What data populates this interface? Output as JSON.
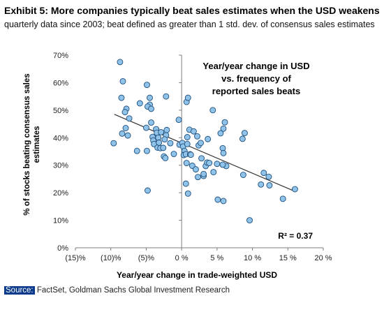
{
  "header": {
    "title": "Exhibit 5: More companies typically beat sales estimates when the USD weakens",
    "subtitle": "quarterly data since 2003; beat defined as greater than 1 std. dev. of consensus sales estimates"
  },
  "footer": {
    "source_label": "Source:",
    "source_text": "FactSet, Goldman Sachs Global Investment Research"
  },
  "colors": {
    "marker_fill": "#8fc3ea",
    "marker_stroke": "#1f4e79",
    "trendline": "#333333",
    "axis": "#7f7f7f",
    "source_bg": "#0b3a8c"
  },
  "chart_data": {
    "type": "scatter",
    "title": "Year/year change in USD vs. frequency of reported sales beats",
    "title_lines": [
      "Year/year change in USD",
      "vs. frequency of",
      "reported sales beats"
    ],
    "xlabel": "Year/year change in trade-weighted USD",
    "ylabel": "% of stocks beating consensus sales estimates",
    "xlim": [
      -15,
      20
    ],
    "ylim": [
      0,
      70
    ],
    "x_ticks": [
      -15,
      -10,
      -5,
      0,
      5,
      10,
      15,
      20
    ],
    "x_tick_labels": [
      "(15)%",
      "(10)%",
      "(5)%",
      "0 %",
      "5 %",
      "10 %",
      "15 %",
      "20 %"
    ],
    "y_ticks": [
      0,
      10,
      20,
      30,
      40,
      50,
      60,
      70
    ],
    "y_tick_labels": [
      "0%",
      "10%",
      "20%",
      "30%",
      "40%",
      "50%",
      "60%",
      "70%"
    ],
    "grid": false,
    "annotation": "R² = 0.37",
    "trendline": {
      "x": [
        -9.5,
        16
      ],
      "y": [
        48.5,
        20.5
      ]
    },
    "points": [
      [
        -8.7,
        67.5
      ],
      [
        -8.3,
        60.5
      ],
      [
        -8.5,
        54.5
      ],
      [
        -7.8,
        50.5
      ],
      [
        -8,
        49.3
      ],
      [
        -7.4,
        47
      ],
      [
        -9.6,
        38
      ],
      [
        -8.4,
        41.5
      ],
      [
        -7.9,
        43.5
      ],
      [
        -7.6,
        40.8
      ],
      [
        -6.3,
        35.2
      ],
      [
        -4.9,
        59.2
      ],
      [
        -4.5,
        54.5
      ],
      [
        -5.9,
        52.5
      ],
      [
        -4.5,
        52
      ],
      [
        -4.8,
        51.3
      ],
      [
        -4.3,
        50.5
      ],
      [
        -5,
        43.6
      ],
      [
        -4.9,
        35.2
      ],
      [
        -4.8,
        20.8
      ],
      [
        -4.3,
        45.5
      ],
      [
        -4.1,
        40.3
      ],
      [
        -4,
        39
      ],
      [
        -3.9,
        37.7
      ],
      [
        -3.6,
        43.1
      ],
      [
        -3.5,
        41.8
      ],
      [
        -3.4,
        36.4
      ],
      [
        -3.3,
        40
      ],
      [
        -3.2,
        38.2
      ],
      [
        -3,
        36.2
      ],
      [
        -2.9,
        42
      ],
      [
        -2.6,
        36.3
      ],
      [
        -2.5,
        33.2
      ],
      [
        -2.3,
        32.6
      ],
      [
        -2.2,
        40.9
      ],
      [
        -2.1,
        42.8
      ],
      [
        -2.4,
        39.4
      ],
      [
        -1.6,
        38
      ],
      [
        -1.1,
        34.1
      ],
      [
        -2.2,
        55
      ],
      [
        -0.3,
        37.5
      ],
      [
        -0.4,
        46.5
      ],
      [
        0.1,
        38.1
      ],
      [
        0.2,
        36.8
      ],
      [
        0.4,
        35.2
      ],
      [
        0.3,
        33.7
      ],
      [
        0.6,
        34
      ],
      [
        0.7,
        30.8
      ],
      [
        0.6,
        23.3
      ],
      [
        0.9,
        19.7
      ],
      [
        0.7,
        53
      ],
      [
        0.9,
        54.5
      ],
      [
        0.8,
        40.2
      ],
      [
        0.8,
        37.7
      ],
      [
        1.1,
        42.9
      ],
      [
        1.2,
        34
      ],
      [
        1.3,
        33.8
      ],
      [
        1.5,
        29.8
      ],
      [
        1.7,
        42.3
      ],
      [
        2,
        28.5
      ],
      [
        2.2,
        40.5
      ],
      [
        2.4,
        37.2
      ],
      [
        2.7,
        38.1
      ],
      [
        2.8,
        32.5
      ],
      [
        2.3,
        25.7
      ],
      [
        3.1,
        26.1
      ],
      [
        3.4,
        29.7
      ],
      [
        3.1,
        26.8
      ],
      [
        3.6,
        31
      ],
      [
        3.9,
        30.8
      ],
      [
        3.7,
        39.5
      ],
      [
        4.4,
        50
      ],
      [
        4.5,
        27.5
      ],
      [
        5,
        30.5
      ],
      [
        5.1,
        17.5
      ],
      [
        5.5,
        41.6
      ],
      [
        5.9,
        43.3
      ],
      [
        6.1,
        45.6
      ],
      [
        5.8,
        36.2
      ],
      [
        5.9,
        34.4
      ],
      [
        6.3,
        29.7
      ],
      [
        5.8,
        30.2
      ],
      [
        5.9,
        17
      ],
      [
        8.6,
        39.6
      ],
      [
        8.9,
        41.7
      ],
      [
        8.7,
        26.5
      ],
      [
        9.6,
        10
      ],
      [
        11.2,
        23
      ],
      [
        11.6,
        27.2
      ],
      [
        12.3,
        25.8
      ],
      [
        12.4,
        22.7
      ],
      [
        14.3,
        17.8
      ],
      [
        16,
        21.3
      ]
    ]
  }
}
